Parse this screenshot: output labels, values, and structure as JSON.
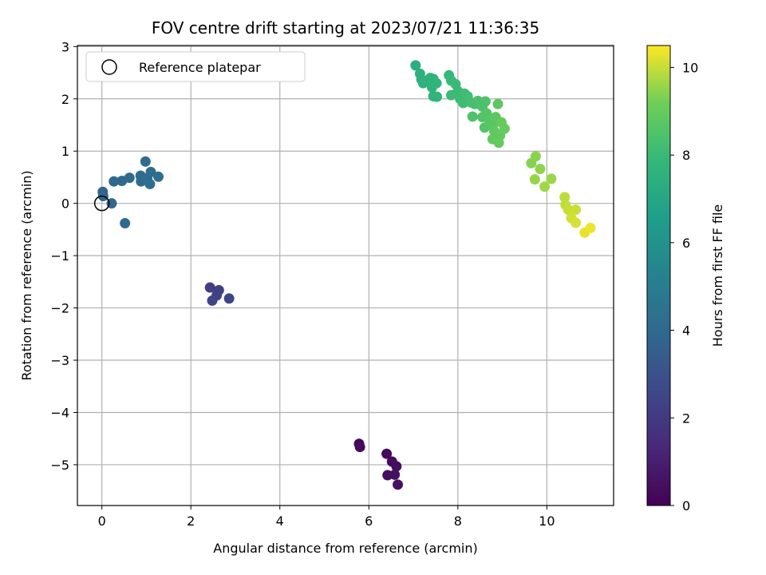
{
  "chart_data": {
    "type": "scatter",
    "title": "FOV centre drift starting at 2023/07/21 11:36:35",
    "xlabel": "Angular distance from reference (arcmin)",
    "ylabel": "Rotation from reference (arcmin)",
    "xlim": [
      -0.55,
      11.5
    ],
    "ylim": [
      -5.78,
      3.02
    ],
    "xticks": [
      0,
      2,
      4,
      6,
      8,
      10
    ],
    "yticks": [
      3,
      2,
      1,
      0,
      -1,
      -2,
      -3,
      -4,
      -5
    ],
    "grid": true,
    "legend": {
      "position": "top-left",
      "entries": [
        "Reference platepar"
      ]
    },
    "reference_point": {
      "x": 0,
      "y": 0
    },
    "colorbar": {
      "label": "Hours from first FF file",
      "range": [
        0,
        10.5
      ],
      "ticks": [
        0,
        2,
        4,
        6,
        8,
        10
      ],
      "colormap": "viridis"
    },
    "points": [
      {
        "x": 5.78,
        "y": -4.6,
        "c": 0.2
      },
      {
        "x": 5.8,
        "y": -4.66,
        "c": 0.25
      },
      {
        "x": 6.4,
        "y": -4.79,
        "c": 0.3
      },
      {
        "x": 6.52,
        "y": -4.94,
        "c": 0.35
      },
      {
        "x": 6.62,
        "y": -5.03,
        "c": 0.4
      },
      {
        "x": 6.42,
        "y": -5.2,
        "c": 0.45
      },
      {
        "x": 6.58,
        "y": -5.19,
        "c": 0.5
      },
      {
        "x": 6.65,
        "y": -5.38,
        "c": 0.55
      },
      {
        "x": 2.43,
        "y": -1.61,
        "c": 2.2
      },
      {
        "x": 2.63,
        "y": -1.66,
        "c": 2.3
      },
      {
        "x": 2.58,
        "y": -1.76,
        "c": 2.35
      },
      {
        "x": 2.48,
        "y": -1.86,
        "c": 2.4
      },
      {
        "x": 2.86,
        "y": -1.82,
        "c": 2.45
      },
      {
        "x": 0.02,
        "y": 0.22,
        "c": 3.8
      },
      {
        "x": 0.03,
        "y": 0.14,
        "c": 3.85
      },
      {
        "x": 0.22,
        "y": 0.0,
        "c": 3.9
      },
      {
        "x": 0.27,
        "y": 0.42,
        "c": 3.95
      },
      {
        "x": 0.45,
        "y": 0.43,
        "c": 4.0
      },
      {
        "x": 0.52,
        "y": -0.38,
        "c": 4.0
      },
      {
        "x": 0.62,
        "y": 0.49,
        "c": 4.05
      },
      {
        "x": 0.87,
        "y": 0.53,
        "c": 4.1
      },
      {
        "x": 0.88,
        "y": 0.42,
        "c": 4.1
      },
      {
        "x": 0.98,
        "y": 0.8,
        "c": 4.15
      },
      {
        "x": 1.02,
        "y": 0.48,
        "c": 4.2
      },
      {
        "x": 1.1,
        "y": 0.6,
        "c": 4.2
      },
      {
        "x": 1.08,
        "y": 0.37,
        "c": 4.25
      },
      {
        "x": 1.27,
        "y": 0.51,
        "c": 4.3
      },
      {
        "x": 7.05,
        "y": 2.64,
        "c": 7.4
      },
      {
        "x": 7.15,
        "y": 2.48,
        "c": 7.45
      },
      {
        "x": 7.18,
        "y": 2.37,
        "c": 7.5
      },
      {
        "x": 7.22,
        "y": 2.3,
        "c": 7.5
      },
      {
        "x": 7.3,
        "y": 2.34,
        "c": 7.55
      },
      {
        "x": 7.38,
        "y": 2.4,
        "c": 7.55
      },
      {
        "x": 7.45,
        "y": 2.38,
        "c": 7.6
      },
      {
        "x": 7.42,
        "y": 2.22,
        "c": 7.6
      },
      {
        "x": 7.52,
        "y": 2.3,
        "c": 7.65
      },
      {
        "x": 7.45,
        "y": 2.05,
        "c": 7.65
      },
      {
        "x": 7.53,
        "y": 2.04,
        "c": 7.7
      },
      {
        "x": 7.8,
        "y": 2.45,
        "c": 7.9
      },
      {
        "x": 7.85,
        "y": 2.35,
        "c": 7.95
      },
      {
        "x": 7.95,
        "y": 2.28,
        "c": 8.0
      },
      {
        "x": 8.0,
        "y": 2.15,
        "c": 8.0
      },
      {
        "x": 7.85,
        "y": 2.07,
        "c": 8.05
      },
      {
        "x": 8.05,
        "y": 2.0,
        "c": 8.1
      },
      {
        "x": 8.15,
        "y": 2.1,
        "c": 8.1
      },
      {
        "x": 8.12,
        "y": 1.92,
        "c": 8.15
      },
      {
        "x": 8.22,
        "y": 2.05,
        "c": 8.2
      },
      {
        "x": 8.3,
        "y": 1.93,
        "c": 8.25
      },
      {
        "x": 8.38,
        "y": 1.9,
        "c": 8.3
      },
      {
        "x": 8.45,
        "y": 1.96,
        "c": 8.35
      },
      {
        "x": 8.55,
        "y": 1.85,
        "c": 8.4
      },
      {
        "x": 8.62,
        "y": 1.95,
        "c": 8.45
      },
      {
        "x": 8.33,
        "y": 1.66,
        "c": 8.5
      },
      {
        "x": 8.55,
        "y": 1.65,
        "c": 8.55
      },
      {
        "x": 8.65,
        "y": 1.72,
        "c": 8.6
      },
      {
        "x": 8.6,
        "y": 1.45,
        "c": 8.6
      },
      {
        "x": 8.72,
        "y": 1.55,
        "c": 8.65
      },
      {
        "x": 8.78,
        "y": 1.48,
        "c": 8.7
      },
      {
        "x": 8.85,
        "y": 1.65,
        "c": 8.75
      },
      {
        "x": 8.9,
        "y": 1.9,
        "c": 8.8
      },
      {
        "x": 8.82,
        "y": 1.38,
        "c": 8.85
      },
      {
        "x": 8.95,
        "y": 1.3,
        "c": 8.9
      },
      {
        "x": 8.78,
        "y": 1.23,
        "c": 8.9
      },
      {
        "x": 8.92,
        "y": 1.16,
        "c": 8.95
      },
      {
        "x": 9.05,
        "y": 1.43,
        "c": 9.0
      },
      {
        "x": 8.98,
        "y": 1.55,
        "c": 9.0
      },
      {
        "x": 9.65,
        "y": 0.77,
        "c": 9.4
      },
      {
        "x": 9.75,
        "y": 0.9,
        "c": 9.45
      },
      {
        "x": 9.85,
        "y": 0.66,
        "c": 9.5
      },
      {
        "x": 9.73,
        "y": 0.46,
        "c": 9.55
      },
      {
        "x": 10.1,
        "y": 0.47,
        "c": 9.6
      },
      {
        "x": 9.95,
        "y": 0.32,
        "c": 9.65
      },
      {
        "x": 10.4,
        "y": 0.12,
        "c": 9.9
      },
      {
        "x": 10.42,
        "y": -0.03,
        "c": 9.95
      },
      {
        "x": 10.48,
        "y": -0.12,
        "c": 10.0
      },
      {
        "x": 10.65,
        "y": -0.12,
        "c": 10.05
      },
      {
        "x": 10.55,
        "y": -0.28,
        "c": 10.1
      },
      {
        "x": 10.65,
        "y": -0.37,
        "c": 10.15
      },
      {
        "x": 10.85,
        "y": -0.56,
        "c": 10.3
      },
      {
        "x": 10.98,
        "y": -0.47,
        "c": 10.35
      }
    ]
  }
}
